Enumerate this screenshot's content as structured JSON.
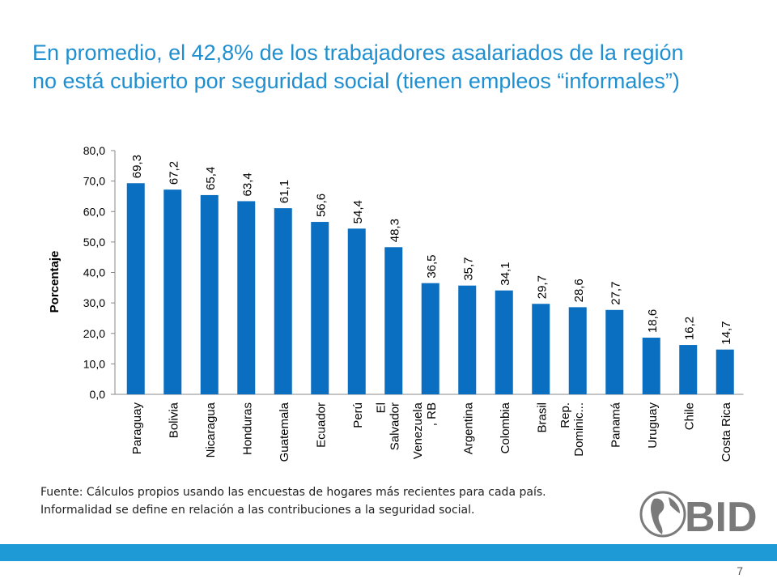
{
  "slide": {
    "title_line1": "En promedio, el 42,8% de los trabajadores asalariados de la región",
    "title_line2": "no está cubierto por seguridad social (tienen empleos “informales”)",
    "footnote_line1": "Fuente: Cálculos propios usando las encuestas de hogares más recientes para cada país.",
    "footnote_line2": "Informalidad se define en relación a las contribuciones a la seguridad social.",
    "logo_text": "BID",
    "page_number": "7"
  },
  "colors": {
    "title": "#1f8fd0",
    "bar": "#0b6fc1",
    "footer_bar": "#1e9ad6",
    "logo": "#7a7a7a"
  },
  "chart_data": {
    "type": "bar",
    "categories": [
      [
        "Paraguay"
      ],
      [
        "Bolivia"
      ],
      [
        "Nicaragua"
      ],
      [
        "Honduras"
      ],
      [
        "Guatemala"
      ],
      [
        "Ecuador"
      ],
      [
        "Perú"
      ],
      [
        "El",
        "Salvador"
      ],
      [
        "Venezuela",
        ", RB"
      ],
      [
        "Argentina"
      ],
      [
        "Colombia"
      ],
      [
        "Brasil"
      ],
      [
        "Rep.",
        "Dominic..."
      ],
      [
        "Panamá"
      ],
      [
        "Uruguay"
      ],
      [
        "Chile"
      ],
      [
        "Costa Rica"
      ]
    ],
    "values": [
      69.3,
      67.2,
      65.4,
      63.4,
      61.1,
      56.6,
      54.4,
      48.3,
      36.5,
      35.7,
      34.1,
      29.7,
      28.6,
      27.7,
      18.6,
      16.2,
      14.7
    ],
    "value_labels": [
      "69,3",
      "67,2",
      "65,4",
      "63,4",
      "61,1",
      "56,6",
      "54,4",
      "48,3",
      "36,5",
      "35,7",
      "34,1",
      "29,7",
      "28,6",
      "27,7",
      "18,6",
      "16,2",
      "14,7"
    ],
    "ylabel": "Porcentaje",
    "ylim": [
      0,
      80
    ],
    "yticks": [
      "0,0",
      "10,0",
      "20,0",
      "30,0",
      "40,0",
      "50,0",
      "60,0",
      "70,0",
      "80,0"
    ],
    "grid": false,
    "legend": "none"
  }
}
